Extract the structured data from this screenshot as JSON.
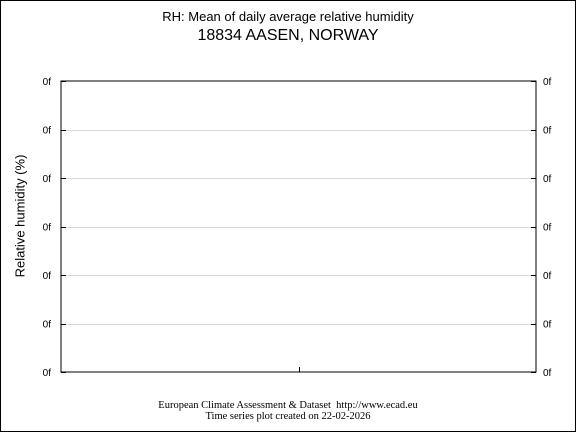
{
  "title": "RH: Mean of daily average relative humidity",
  "subtitle": "18834 AASEN, NORWAY",
  "footer": {
    "line1": "European Climate Assessment & Dataset  http://www.ecad.eu",
    "line2": "Time series plot created on 22-02-2026"
  },
  "chart_data": {
    "type": "line",
    "title": "RH: Mean of daily average relative humidity",
    "subtitle": "18834 AASEN, NORWAY",
    "xlabel": "",
    "ylabel": "Relative humidity (%)",
    "y_tick_labels": [
      "0f",
      "0f",
      "0f",
      "0f",
      "0f",
      "0f",
      "0f"
    ],
    "x_tick_labels": [],
    "series": [],
    "grid": true,
    "legend": "none"
  }
}
